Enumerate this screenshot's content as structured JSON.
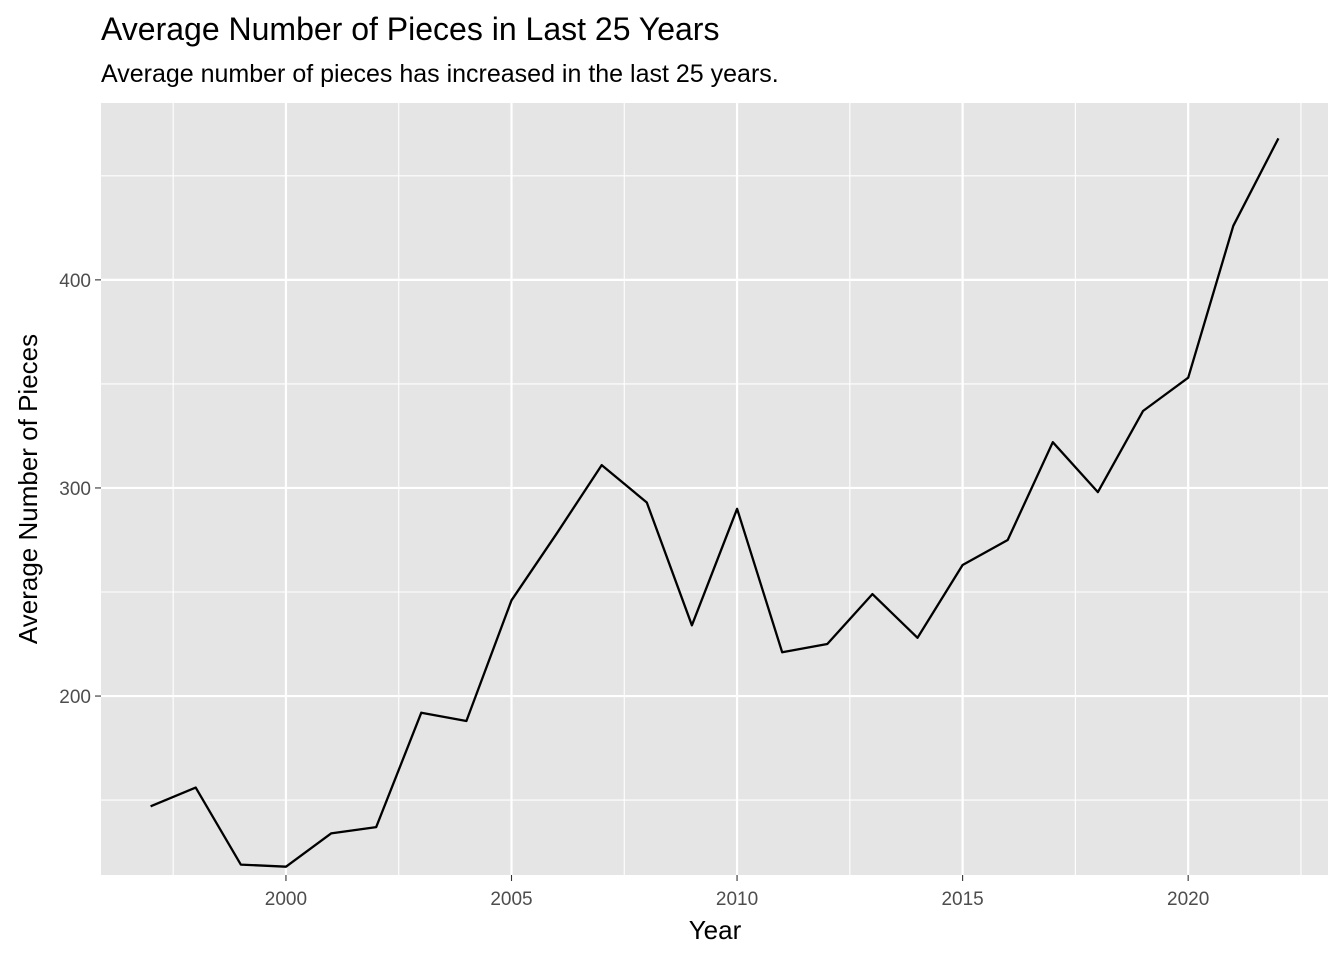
{
  "chart_data": {
    "type": "line",
    "title": "Average Number of Pieces in Last 25 Years",
    "subtitle": "Average number of pieces has increased in the last 25 years.",
    "xlabel": "Year",
    "ylabel": "Average Number of Pieces",
    "xlim": [
      1995.9,
      2023.1
    ],
    "ylim": [
      114,
      485
    ],
    "x_ticks": [
      2000,
      2005,
      2010,
      2015,
      2020
    ],
    "x_tick_labels": [
      "2000",
      "2005",
      "2010",
      "2015",
      "2020"
    ],
    "y_ticks": [
      200,
      300,
      400
    ],
    "y_tick_labels": [
      "200",
      "300",
      "400"
    ],
    "grid": true,
    "background": "#e5e5e5",
    "grid_color": "#ffffff",
    "line_color": "#000000",
    "series": [
      {
        "x": [
          1997,
          1998,
          1999,
          2000,
          2001,
          2002,
          2003,
          2004,
          2005,
          2006,
          2007,
          2008,
          2009,
          2010,
          2011,
          2012,
          2013,
          2014,
          2015,
          2016,
          2017,
          2018,
          2019,
          2020,
          2021,
          2022
        ],
        "values": [
          147,
          156,
          119,
          118,
          134,
          137,
          192,
          188,
          246,
          278,
          311,
          293,
          234,
          290,
          221,
          225,
          249,
          228,
          263,
          275,
          322,
          298,
          337,
          353,
          426,
          468
        ]
      }
    ]
  }
}
